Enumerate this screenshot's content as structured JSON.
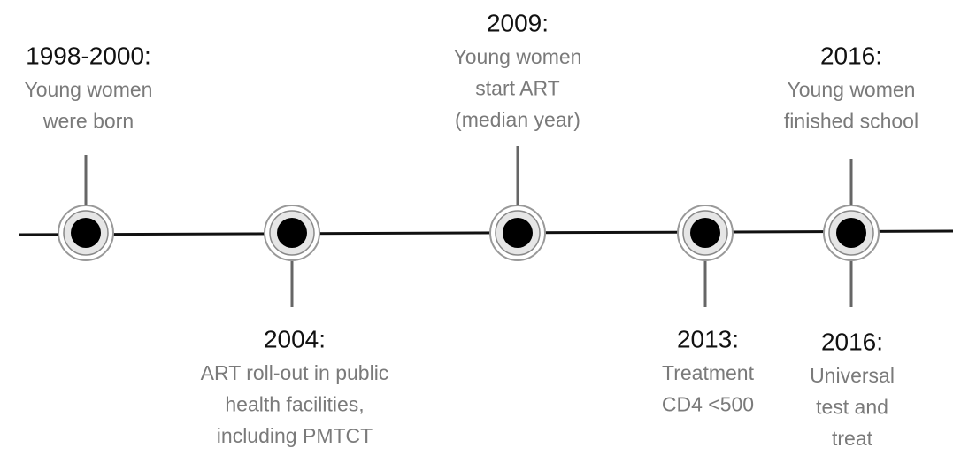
{
  "events": [
    {
      "year": "1998-2000:",
      "lines": [
        "Young women",
        "were born"
      ]
    },
    {
      "year": "2004:",
      "lines": [
        "ART roll-out in public",
        "health facilities,",
        "including PMTCT"
      ]
    },
    {
      "year": "2009:",
      "lines": [
        "Young women",
        "start ART",
        "(median year)"
      ]
    },
    {
      "year": "2013:",
      "lines": [
        "Treatment",
        "CD4 <500"
      ]
    },
    {
      "year": "2016:",
      "lines": [
        "Young women",
        "finished school"
      ]
    },
    {
      "year": "2016:",
      "lines": [
        "Universal",
        "test and",
        "treat"
      ]
    }
  ]
}
